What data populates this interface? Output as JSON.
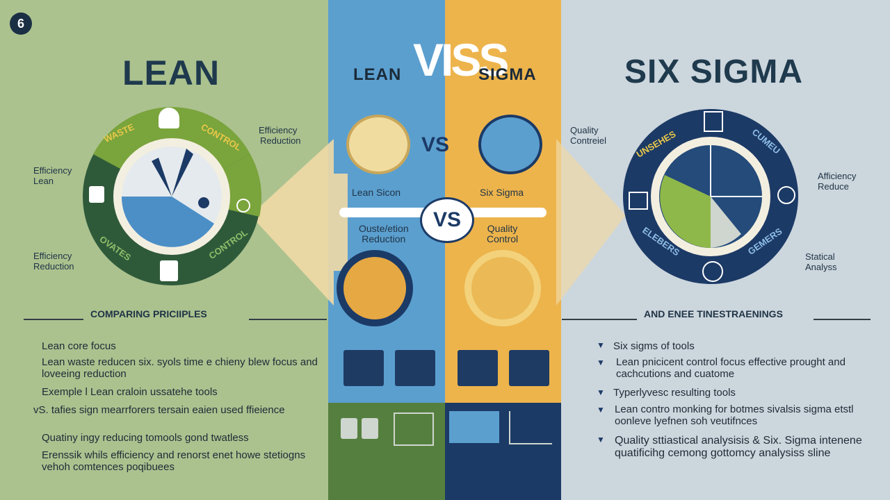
{
  "badge": {
    "number": "6"
  },
  "left": {
    "title": "LEAN",
    "ring_words": [
      "WASTE",
      "CONTROL",
      "OVATES",
      "CONTROL"
    ],
    "side_labels": [
      {
        "line1": "Efficiency",
        "line2": "Reduction"
      },
      {
        "line1": "Efficiency",
        "line2": "Lean"
      },
      {
        "line1": "Efficiency",
        "line2": "Reduction"
      }
    ],
    "section_heading": "COMPARING PRICIIPLES",
    "bullets": [
      "Lean core focus",
      "Lean waste reducen six. syols time e chieny blew focus and loveeing reduction",
      "Exemple l Lean craloin ussatehe tools",
      "vS. tafies sign mearrforers tersain eaien used ffieience",
      "Quatiny ingy reducing tomools gond twatless",
      "Erenssik whils efficiency and renorst enet howe stetiogns vehoh comtences poqibuees"
    ]
  },
  "center": {
    "title_left": "LEAN",
    "title_vs": "VISS",
    "title_right": "SIGMA",
    "vs_small": "VS",
    "vs_big": "VS",
    "label_lean": "Lean Sicon",
    "label_six": "Six Sigma",
    "label_waste_1": "Ouste/etion",
    "label_waste_2": "Reduction",
    "label_quality_1": "Quality",
    "label_quality_2": "Control"
  },
  "right": {
    "title": "SIX SIGMA",
    "ring_words": [
      "UNSEHES",
      "CUMEU",
      "ELEBERS",
      "GEMERS"
    ],
    "side_labels": [
      {
        "line1": "Quality",
        "line2": "Contreiel"
      },
      {
        "line1": "Afficiency",
        "line2": "Reduce"
      },
      {
        "line1": "Statical",
        "line2": "Analyss"
      }
    ],
    "section_heading": "AND ENEE TINESTRAENINGS",
    "bullets": [
      "Six sigms of tools",
      "Lean pnicicent control focus effective prought and cachcutions and cuatome",
      "Typerlyvesc resulting tools",
      "Lean contro monking for botmes sivalsis sigma etstl oonleve lyefnen soh veutifnces",
      "Quality sttiastical analysisis & Six. Sigma intenene quatificihg cemong gottomcy analysiss sline"
    ]
  },
  "colors": {
    "navy": "#1c3a66",
    "green": "#557f3f",
    "lime": "#7aa43c",
    "blue_panel": "#5b9fcf",
    "yellow_panel": "#edb44c"
  }
}
